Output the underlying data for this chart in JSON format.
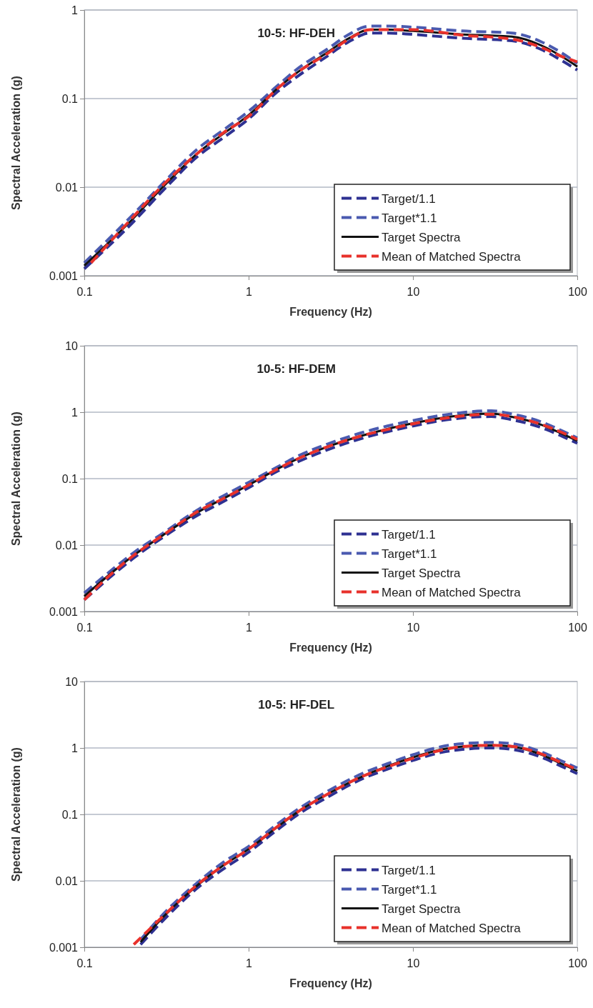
{
  "chart_data": [
    {
      "type": "line",
      "title": "10-5: HF-DEH",
      "xlabel": "Frequency (Hz)",
      "ylabel": "Spectral Acceleration (g)",
      "log": "xy",
      "grid": "y",
      "legend": "bottom right",
      "xlim": [
        0.1,
        100
      ],
      "xticks": [
        0.1,
        1,
        10,
        100
      ],
      "ylim": [
        0.001,
        1
      ],
      "yticks": [
        0.001,
        0.01,
        0.1,
        1
      ],
      "x": [
        0.1,
        0.2,
        0.3,
        0.5,
        0.7,
        1,
        1.5,
        2,
        3,
        4,
        5.5,
        7,
        10,
        20,
        40,
        60,
        80,
        100
      ],
      "series": [
        {
          "name": "Target/1.1",
          "color": "#2e3192",
          "line_style": "dashed",
          "values": [
            0.0012,
            0.0041,
            0.0091,
            0.023,
            0.036,
            0.059,
            0.12,
            0.18,
            0.3,
            0.43,
            0.55,
            0.55,
            0.53,
            0.48,
            0.45,
            0.36,
            0.27,
            0.21
          ]
        },
        {
          "name": "Target*1.1",
          "color": "#4a5ab0",
          "line_style": "dashed",
          "values": [
            0.0014,
            0.005,
            0.011,
            0.028,
            0.044,
            0.072,
            0.14,
            0.22,
            0.36,
            0.52,
            0.66,
            0.66,
            0.64,
            0.58,
            0.55,
            0.44,
            0.33,
            0.25
          ]
        },
        {
          "name": "Target Spectra",
          "color": "#111111",
          "line_style": "solid",
          "values": [
            0.0013,
            0.0045,
            0.01,
            0.025,
            0.04,
            0.065,
            0.13,
            0.2,
            0.33,
            0.47,
            0.6,
            0.6,
            0.58,
            0.53,
            0.5,
            0.4,
            0.3,
            0.23
          ]
        },
        {
          "name": "Mean of Matched Spectra",
          "color": "#e8312b",
          "line_style": "dashed",
          "x": [
            0.11,
            0.2,
            0.3,
            0.5,
            0.7,
            1,
            1.5,
            2,
            3,
            4,
            5.5,
            7,
            10,
            20,
            40,
            60,
            80,
            100
          ],
          "values": [
            0.0014,
            0.0047,
            0.0105,
            0.025,
            0.041,
            0.063,
            0.13,
            0.2,
            0.32,
            0.46,
            0.6,
            0.6,
            0.6,
            0.52,
            0.47,
            0.38,
            0.3,
            0.26
          ]
        }
      ]
    },
    {
      "type": "line",
      "title": "10-5: HF-DEM",
      "xlabel": "Frequency (Hz)",
      "ylabel": "Spectral Acceleration (g)",
      "log": "xy",
      "grid": "y",
      "legend": "bottom right",
      "xlim": [
        0.1,
        100
      ],
      "xticks": [
        0.1,
        1,
        10,
        100
      ],
      "ylim": [
        0.001,
        10
      ],
      "yticks": [
        0.001,
        0.01,
        0.1,
        1,
        10
      ],
      "x": [
        0.1,
        0.15,
        0.2,
        0.3,
        0.5,
        0.7,
        1,
        1.5,
        2,
        3,
        5,
        7,
        10,
        15,
        20,
        30,
        40,
        60,
        80,
        100
      ],
      "series": [
        {
          "name": "Target/1.1",
          "color": "#2e3192",
          "line_style": "dashed",
          "values": [
            0.0015,
            0.0036,
            0.0064,
            0.013,
            0.029,
            0.045,
            0.073,
            0.13,
            0.18,
            0.27,
            0.41,
            0.51,
            0.62,
            0.75,
            0.82,
            0.86,
            0.77,
            0.59,
            0.44,
            0.34
          ]
        },
        {
          "name": "Target*1.1",
          "color": "#4a5ab0",
          "line_style": "dashed",
          "values": [
            0.0019,
            0.0044,
            0.0077,
            0.015,
            0.035,
            0.055,
            0.088,
            0.15,
            0.22,
            0.33,
            0.5,
            0.62,
            0.75,
            0.9,
            0.99,
            1.05,
            0.94,
            0.72,
            0.53,
            0.41
          ]
        },
        {
          "name": "Target Spectra",
          "color": "#111111",
          "line_style": "solid",
          "values": [
            0.0017,
            0.004,
            0.007,
            0.014,
            0.032,
            0.05,
            0.08,
            0.14,
            0.2,
            0.3,
            0.45,
            0.56,
            0.68,
            0.82,
            0.9,
            0.95,
            0.85,
            0.65,
            0.48,
            0.37
          ]
        },
        {
          "name": "Mean of Matched Spectra",
          "color": "#e8312b",
          "line_style": "dashed",
          "values": [
            0.0015,
            0.0039,
            0.007,
            0.014,
            0.033,
            0.05,
            0.08,
            0.14,
            0.2,
            0.3,
            0.45,
            0.55,
            0.67,
            0.8,
            0.88,
            0.93,
            0.86,
            0.66,
            0.5,
            0.39
          ]
        }
      ]
    },
    {
      "type": "line",
      "title": "10-5: HF-DEL",
      "xlabel": "Frequency (Hz)",
      "ylabel": "Spectral Acceleration (g)",
      "log": "xy",
      "grid": "y",
      "legend": "bottom right",
      "xlim": [
        0.1,
        100
      ],
      "xticks": [
        0.1,
        1,
        10,
        100
      ],
      "ylim": [
        0.001,
        10
      ],
      "yticks": [
        0.001,
        0.01,
        0.1,
        1,
        10
      ],
      "x": [
        0.22,
        0.3,
        0.5,
        0.7,
        1,
        1.5,
        2,
        3,
        5,
        7,
        10,
        15,
        20,
        30,
        40,
        60,
        80,
        100
      ],
      "series": [
        {
          "name": "Target/1.1",
          "color": "#2e3192",
          "line_style": "dashed",
          "values": [
            0.0011,
            0.0025,
            0.0082,
            0.015,
            0.027,
            0.059,
            0.1,
            0.18,
            0.35,
            0.48,
            0.65,
            0.86,
            0.95,
            1,
            0.95,
            0.73,
            0.53,
            0.41
          ]
        },
        {
          "name": "Target*1.1",
          "color": "#4a5ab0",
          "line_style": "dashed",
          "values": [
            0.0013,
            0.0031,
            0.0099,
            0.019,
            0.033,
            0.072,
            0.12,
            0.22,
            0.42,
            0.58,
            0.79,
            1.05,
            1.16,
            1.21,
            1.16,
            0.88,
            0.64,
            0.5
          ]
        },
        {
          "name": "Target Spectra",
          "color": "#111111",
          "line_style": "solid",
          "values": [
            0.0012,
            0.0028,
            0.009,
            0.017,
            0.03,
            0.065,
            0.11,
            0.2,
            0.38,
            0.53,
            0.72,
            0.95,
            1.05,
            1.1,
            1.05,
            0.8,
            0.58,
            0.45
          ]
        },
        {
          "name": "Mean of Matched Spectra",
          "color": "#e8312b",
          "line_style": "dashed",
          "x": [
            0.2,
            0.3,
            0.5,
            0.7,
            1,
            1.5,
            2,
            3,
            5,
            7,
            10,
            15,
            20,
            30,
            40,
            60,
            80,
            100
          ],
          "values": [
            0.0011,
            0.0029,
            0.0092,
            0.017,
            0.03,
            0.066,
            0.11,
            0.2,
            0.38,
            0.52,
            0.7,
            0.93,
            1.05,
            1.1,
            1.06,
            0.82,
            0.6,
            0.47
          ]
        }
      ]
    }
  ]
}
